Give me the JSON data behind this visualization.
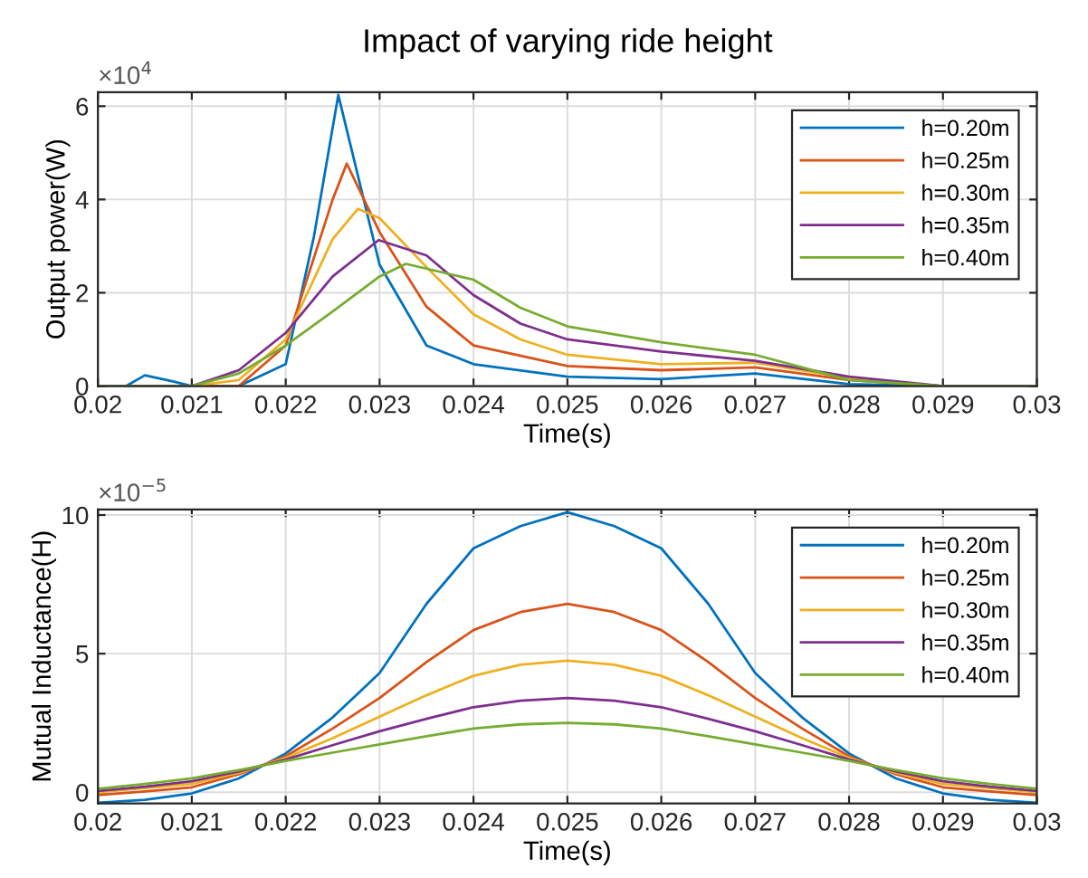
{
  "chart_data": [
    {
      "type": "line",
      "title": "Impact of varying ride height",
      "xlabel": "Time(s)",
      "ylabel": "Output power(W)",
      "annotations": [
        "×10$^{4}$"
      ],
      "xlim": [
        0.02,
        0.03
      ],
      "xticks": [
        0.02,
        0.021,
        0.022,
        0.023,
        0.024,
        0.025,
        0.026,
        0.027,
        0.028,
        0.029,
        0.03
      ],
      "ylim": [
        0,
        6.3
      ],
      "yticks": [
        0,
        2,
        4,
        6
      ],
      "grid": true,
      "legend": "top right",
      "line_style": "solid",
      "marker": "none",
      "series": [
        {
          "name": "h=0.20m",
          "color": "#0072bd",
          "x": [
            0.02,
            0.0203,
            0.0205,
            0.0208,
            0.021,
            0.0215,
            0.022,
            0.0223,
            0.02256,
            0.023,
            0.0235,
            0.024,
            0.025,
            0.026,
            0.027,
            0.028,
            0.029,
            0.03
          ],
          "values": [
            0,
            0,
            0.23,
            0.1,
            0,
            0,
            0.47,
            3.2,
            6.24,
            2.6,
            0.87,
            0.47,
            0.2,
            0.15,
            0.27,
            0.04,
            0,
            0
          ]
        },
        {
          "name": "h=0.25m",
          "color": "#d95319",
          "x": [
            0.02,
            0.021,
            0.0215,
            0.022,
            0.0225,
            0.02265,
            0.023,
            0.0235,
            0.024,
            0.025,
            0.026,
            0.027,
            0.028,
            0.029,
            0.03
          ],
          "values": [
            0,
            0,
            0,
            0.87,
            4.0,
            4.77,
            3.3,
            1.7,
            0.87,
            0.43,
            0.34,
            0.4,
            0.13,
            0,
            0
          ]
        },
        {
          "name": "h=0.30m",
          "color": "#edb120",
          "x": [
            0.02,
            0.021,
            0.0215,
            0.022,
            0.0225,
            0.02277,
            0.023,
            0.0235,
            0.024,
            0.0245,
            0.025,
            0.026,
            0.027,
            0.028,
            0.029,
            0.03
          ],
          "values": [
            0,
            0,
            0.13,
            1.0,
            3.15,
            3.8,
            3.6,
            2.55,
            1.54,
            1.0,
            0.67,
            0.47,
            0.5,
            0.17,
            0,
            0
          ]
        },
        {
          "name": "h=0.35m",
          "color": "#7e2f8e",
          "x": [
            0.02,
            0.021,
            0.0215,
            0.022,
            0.0225,
            0.02299,
            0.0235,
            0.024,
            0.0245,
            0.025,
            0.026,
            0.027,
            0.028,
            0.029,
            0.03
          ],
          "values": [
            0,
            0,
            0.34,
            1.14,
            2.35,
            3.13,
            2.8,
            1.95,
            1.34,
            1.0,
            0.74,
            0.54,
            0.2,
            0,
            0
          ]
        },
        {
          "name": "h=0.40m",
          "color": "#77ac30",
          "x": [
            0.02,
            0.021,
            0.0215,
            0.022,
            0.0225,
            0.023,
            0.02328,
            0.024,
            0.0245,
            0.025,
            0.026,
            0.027,
            0.0275,
            0.028,
            0.029,
            0.03
          ],
          "values": [
            0,
            0,
            0.27,
            0.87,
            1.6,
            2.35,
            2.62,
            2.28,
            1.68,
            1.28,
            0.94,
            0.67,
            0.4,
            0.13,
            0,
            0
          ]
        }
      ]
    },
    {
      "type": "line",
      "xlabel": "Time(s)",
      "ylabel": "Mutual Inductance(H)",
      "annotations": [
        "×10$^{−5}$"
      ],
      "xlim": [
        0.02,
        0.03
      ],
      "xticks": [
        0.02,
        0.021,
        0.022,
        0.023,
        0.024,
        0.025,
        0.026,
        0.027,
        0.028,
        0.029,
        0.03
      ],
      "ylim": [
        -0.4,
        10.2
      ],
      "yticks": [
        0,
        5,
        10
      ],
      "grid": true,
      "legend": "top right",
      "line_style": "solid",
      "marker": "none",
      "x": [
        0.02,
        0.0205,
        0.021,
        0.0215,
        0.022,
        0.0225,
        0.023,
        0.0235,
        0.024,
        0.0245,
        0.025,
        0.0255,
        0.026,
        0.0265,
        0.027,
        0.0275,
        0.028,
        0.0285,
        0.029,
        0.0295,
        0.03
      ],
      "series": [
        {
          "name": "h=0.20m",
          "color": "#0072bd",
          "values": [
            -0.38,
            -0.27,
            -0.04,
            0.5,
            1.4,
            2.7,
            4.3,
            6.8,
            8.8,
            9.6,
            10.1,
            9.6,
            8.8,
            6.8,
            4.3,
            2.7,
            1.4,
            0.5,
            -0.04,
            -0.27,
            -0.38
          ]
        },
        {
          "name": "h=0.25m",
          "color": "#d95319",
          "values": [
            -0.1,
            0.03,
            0.18,
            0.65,
            1.3,
            2.3,
            3.4,
            4.7,
            5.85,
            6.5,
            6.8,
            6.5,
            5.85,
            4.7,
            3.4,
            2.3,
            1.3,
            0.65,
            0.18,
            0.03,
            -0.1
          ]
        },
        {
          "name": "h=0.30m",
          "color": "#edb120",
          "values": [
            0,
            0.15,
            0.3,
            0.7,
            1.24,
            1.95,
            2.73,
            3.5,
            4.2,
            4.6,
            4.75,
            4.6,
            4.2,
            3.5,
            2.73,
            1.95,
            1.24,
            0.7,
            0.3,
            0.15,
            0
          ]
        },
        {
          "name": "h=0.35m",
          "color": "#7e2f8e",
          "values": [
            0.05,
            0.2,
            0.4,
            0.75,
            1.18,
            1.7,
            2.2,
            2.65,
            3.07,
            3.3,
            3.4,
            3.3,
            3.07,
            2.65,
            2.2,
            1.7,
            1.18,
            0.75,
            0.4,
            0.2,
            0.05
          ]
        },
        {
          "name": "h=0.40m",
          "color": "#77ac30",
          "values": [
            0.13,
            0.3,
            0.5,
            0.8,
            1.13,
            1.43,
            1.73,
            2.02,
            2.3,
            2.45,
            2.5,
            2.45,
            2.3,
            2.02,
            1.73,
            1.43,
            1.13,
            0.8,
            0.5,
            0.3,
            0.13
          ]
        }
      ]
    }
  ]
}
